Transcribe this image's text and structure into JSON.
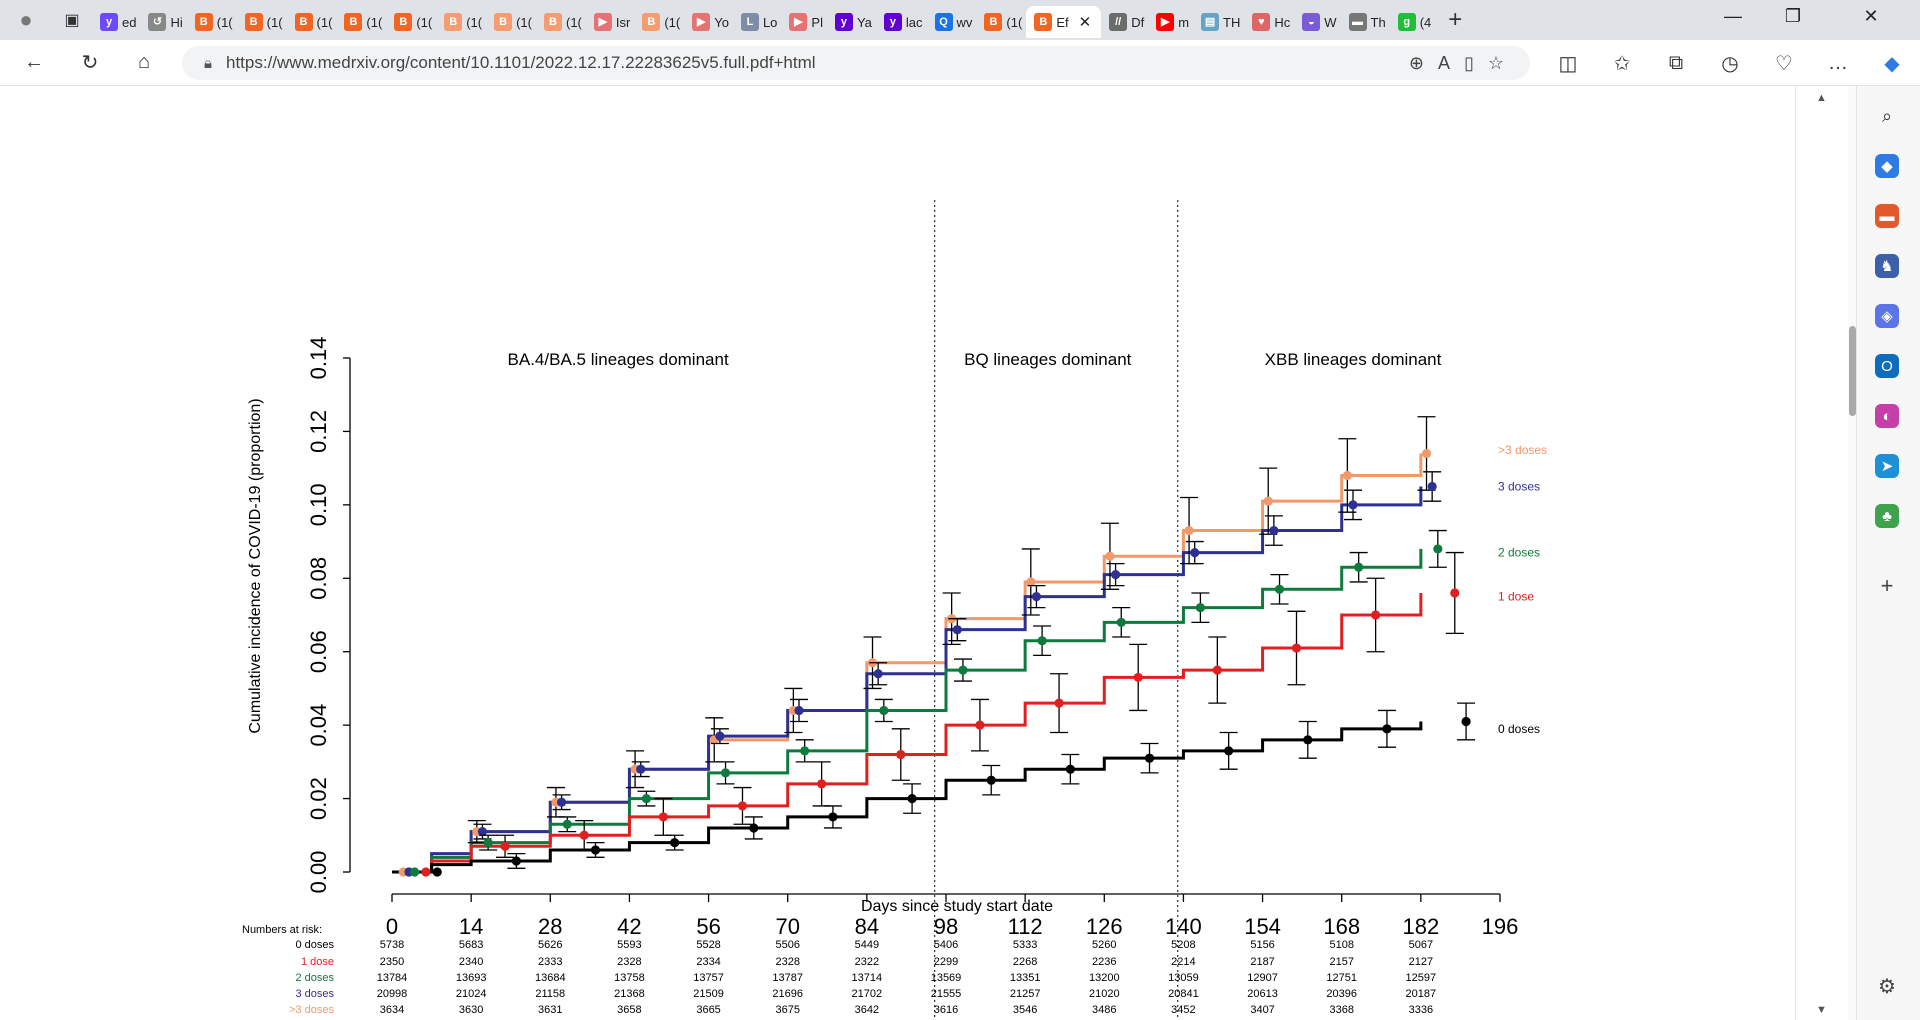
{
  "browser": {
    "tabs": [
      {
        "label": "ed",
        "color": "#6d4aff",
        "glyph": "y"
      },
      {
        "label": "Hi",
        "color": "#888888",
        "glyph": "↺"
      },
      {
        "label": "(1(",
        "color": "#f26522",
        "glyph": "B"
      },
      {
        "label": "(1(",
        "color": "#f26522",
        "glyph": "B"
      },
      {
        "label": "(1(",
        "color": "#f26522",
        "glyph": "B"
      },
      {
        "label": "(1(",
        "color": "#f26522",
        "glyph": "B"
      },
      {
        "label": "(1(",
        "color": "#f26522",
        "glyph": "B"
      },
      {
        "label": "(1(",
        "color": "#f59c71",
        "glyph": "B"
      },
      {
        "label": "(1(",
        "color": "#f59c71",
        "glyph": "B"
      },
      {
        "label": "(1(",
        "color": "#f59c71",
        "glyph": "B"
      },
      {
        "label": "Isr",
        "color": "#e57373",
        "glyph": "▶"
      },
      {
        "label": "(1(",
        "color": "#f59c71",
        "glyph": "B"
      },
      {
        "label": "Yo",
        "color": "#e57373",
        "glyph": "▶"
      },
      {
        "label": "Lo",
        "color": "#7e8ca8",
        "glyph": "L"
      },
      {
        "label": "Pl",
        "color": "#e57373",
        "glyph": "▶"
      },
      {
        "label": "Ya",
        "color": "#6001d2",
        "glyph": "y"
      },
      {
        "label": "lac",
        "color": "#6001d2",
        "glyph": "y"
      },
      {
        "label": "wv",
        "color": "#1a73e8",
        "glyph": "Q"
      },
      {
        "label": "(1(",
        "color": "#f26522",
        "glyph": "B"
      }
    ],
    "active_tab": {
      "label": "Ef",
      "close": "✕"
    },
    "tabs_after": [
      {
        "label": "Df",
        "color": "#6b6b6b",
        "glyph": "//"
      },
      {
        "label": "m",
        "color": "#ff0000",
        "glyph": "▶"
      },
      {
        "label": "TH",
        "color": "#66a3c4",
        "glyph": "▤"
      },
      {
        "label": "Hc",
        "color": "#e06666",
        "glyph": "♥"
      },
      {
        "label": "W",
        "color": "#7a5cd6",
        "glyph": "◒"
      },
      {
        "label": "Th",
        "color": "#777777",
        "glyph": "▬"
      },
      {
        "label": "(4",
        "color": "#1fbf3a",
        "glyph": "g"
      }
    ],
    "new_tab": "+",
    "url": "https://www.medrxiv.org/content/10.1101/2022.12.17.22283625v5.full.pdf+html",
    "window_controls": {
      "minimize": "—",
      "restore": "❐",
      "close": "✕"
    }
  },
  "chart_data": {
    "type": "line",
    "xlabel": "Days since study start date",
    "ylabel": "Cumulative incidence of COVID-19 (proportion)",
    "xlim": [
      0,
      196
    ],
    "ylim": [
      0,
      0.14
    ],
    "x_ticks": [
      0,
      14,
      28,
      42,
      56,
      70,
      84,
      98,
      112,
      126,
      140,
      154,
      168,
      182,
      196
    ],
    "y_ticks": [
      "0.00",
      "0.02",
      "0.04",
      "0.06",
      "0.08",
      "0.10",
      "0.12",
      "0.14"
    ],
    "periods": [
      {
        "label": "BA.4/BA.5 lineages dominant",
        "center": 40
      },
      {
        "label": "BQ lineages dominant",
        "center": 116
      },
      {
        "label": "XBB lineages dominant",
        "center": 170
      }
    ],
    "dividers": [
      96,
      139
    ],
    "series": [
      {
        "name": ">3 doses",
        "color": "#f0996a",
        "curve": [
          [
            0,
            0
          ],
          [
            7,
            0.004
          ],
          [
            14,
            0.011
          ],
          [
            28,
            0.019
          ],
          [
            42,
            0.028
          ],
          [
            56,
            0.036
          ],
          [
            70,
            0.044
          ],
          [
            84,
            0.057
          ],
          [
            98,
            0.069
          ],
          [
            112,
            0.079
          ],
          [
            126,
            0.086
          ],
          [
            140,
            0.093
          ],
          [
            154,
            0.101
          ],
          [
            168,
            0.108
          ],
          [
            182,
            0.114
          ]
        ],
        "points": [
          [
            2,
            0
          ],
          [
            15,
            0.011
          ],
          [
            29,
            0.019
          ],
          [
            43,
            0.028
          ],
          [
            57,
            0.036
          ],
          [
            71,
            0.044
          ],
          [
            85,
            0.057
          ],
          [
            99,
            0.069
          ],
          [
            113,
            0.079
          ],
          [
            127,
            0.086
          ],
          [
            141,
            0.093
          ],
          [
            155,
            0.101
          ],
          [
            169,
            0.108
          ],
          [
            183,
            0.114
          ]
        ],
        "err": [
          0,
          0.003,
          0.004,
          0.005,
          0.006,
          0.006,
          0.007,
          0.007,
          0.009,
          0.009,
          0.009,
          0.009,
          0.01,
          0.01
        ]
      },
      {
        "name": "3 doses",
        "color": "#2e3192",
        "curve": [
          [
            0,
            0
          ],
          [
            7,
            0.005
          ],
          [
            14,
            0.011
          ],
          [
            28,
            0.019
          ],
          [
            42,
            0.028
          ],
          [
            56,
            0.037
          ],
          [
            70,
            0.044
          ],
          [
            84,
            0.054
          ],
          [
            98,
            0.066
          ],
          [
            112,
            0.075
          ],
          [
            126,
            0.081
          ],
          [
            140,
            0.087
          ],
          [
            154,
            0.093
          ],
          [
            168,
            0.1
          ],
          [
            182,
            0.105
          ]
        ],
        "points": [
          [
            3,
            0
          ],
          [
            16,
            0.011
          ],
          [
            30,
            0.019
          ],
          [
            44,
            0.028
          ],
          [
            58,
            0.037
          ],
          [
            72,
            0.044
          ],
          [
            86,
            0.054
          ],
          [
            100,
            0.066
          ],
          [
            114,
            0.075
          ],
          [
            128,
            0.081
          ],
          [
            142,
            0.087
          ],
          [
            156,
            0.093
          ],
          [
            170,
            0.1
          ],
          [
            184,
            0.105
          ]
        ],
        "err": [
          0,
          0.002,
          0.002,
          0.002,
          0.002,
          0.003,
          0.003,
          0.003,
          0.003,
          0.003,
          0.003,
          0.004,
          0.004,
          0.004
        ]
      },
      {
        "name": "2 doses",
        "color": "#0e7a3e",
        "curve": [
          [
            0,
            0
          ],
          [
            7,
            0.004
          ],
          [
            14,
            0.008
          ],
          [
            28,
            0.013
          ],
          [
            42,
            0.02
          ],
          [
            56,
            0.027
          ],
          [
            70,
            0.033
          ],
          [
            84,
            0.044
          ],
          [
            98,
            0.055
          ],
          [
            112,
            0.063
          ],
          [
            126,
            0.068
          ],
          [
            140,
            0.072
          ],
          [
            154,
            0.077
          ],
          [
            168,
            0.083
          ],
          [
            182,
            0.088
          ]
        ],
        "points": [
          [
            4,
            0
          ],
          [
            17,
            0.008
          ],
          [
            31,
            0.013
          ],
          [
            45,
            0.02
          ],
          [
            59,
            0.027
          ],
          [
            73,
            0.033
          ],
          [
            87,
            0.044
          ],
          [
            101,
            0.055
          ],
          [
            115,
            0.063
          ],
          [
            129,
            0.068
          ],
          [
            143,
            0.072
          ],
          [
            157,
            0.077
          ],
          [
            171,
            0.083
          ],
          [
            185,
            0.088
          ]
        ],
        "err": [
          0,
          0.002,
          0.002,
          0.002,
          0.003,
          0.003,
          0.003,
          0.003,
          0.004,
          0.004,
          0.004,
          0.004,
          0.004,
          0.005
        ]
      },
      {
        "name": "1 dose",
        "color": "#e02020",
        "curve": [
          [
            0,
            0
          ],
          [
            7,
            0.003
          ],
          [
            14,
            0.007
          ],
          [
            28,
            0.01
          ],
          [
            42,
            0.015
          ],
          [
            56,
            0.018
          ],
          [
            70,
            0.024
          ],
          [
            84,
            0.032
          ],
          [
            98,
            0.04
          ],
          [
            112,
            0.046
          ],
          [
            126,
            0.053
          ],
          [
            140,
            0.055
          ],
          [
            154,
            0.061
          ],
          [
            168,
            0.07
          ],
          [
            182,
            0.076
          ]
        ],
        "points": [
          [
            6,
            0
          ],
          [
            20,
            0.007
          ],
          [
            34,
            0.01
          ],
          [
            48,
            0.015
          ],
          [
            62,
            0.018
          ],
          [
            76,
            0.024
          ],
          [
            90,
            0.032
          ],
          [
            104,
            0.04
          ],
          [
            118,
            0.046
          ],
          [
            132,
            0.053
          ],
          [
            146,
            0.055
          ],
          [
            160,
            0.061
          ],
          [
            174,
            0.07
          ],
          [
            188,
            0.076
          ]
        ],
        "err": [
          0,
          0.003,
          0.004,
          0.005,
          0.005,
          0.006,
          0.007,
          0.007,
          0.008,
          0.009,
          0.009,
          0.01,
          0.01,
          0.011
        ]
      },
      {
        "name": "0 doses",
        "color": "#000000",
        "curve": [
          [
            0,
            0
          ],
          [
            7,
            0.002
          ],
          [
            14,
            0.003
          ],
          [
            28,
            0.006
          ],
          [
            42,
            0.008
          ],
          [
            56,
            0.012
          ],
          [
            70,
            0.015
          ],
          [
            84,
            0.02
          ],
          [
            98,
            0.025
          ],
          [
            112,
            0.028
          ],
          [
            126,
            0.031
          ],
          [
            140,
            0.033
          ],
          [
            154,
            0.036
          ],
          [
            168,
            0.039
          ],
          [
            182,
            0.041
          ]
        ],
        "points": [
          [
            8,
            0
          ],
          [
            22,
            0.003
          ],
          [
            36,
            0.006
          ],
          [
            50,
            0.008
          ],
          [
            64,
            0.012
          ],
          [
            78,
            0.015
          ],
          [
            92,
            0.02
          ],
          [
            106,
            0.025
          ],
          [
            120,
            0.028
          ],
          [
            134,
            0.031
          ],
          [
            148,
            0.033
          ],
          [
            162,
            0.036
          ],
          [
            176,
            0.039
          ],
          [
            190,
            0.041
          ]
        ],
        "err": [
          0,
          0.002,
          0.002,
          0.002,
          0.003,
          0.003,
          0.004,
          0.004,
          0.004,
          0.004,
          0.005,
          0.005,
          0.005,
          0.005
        ]
      }
    ],
    "legend_labels": [
      {
        "name": ">3 doses",
        "y": 0.115
      },
      {
        "name": "3 doses",
        "y": 0.105
      },
      {
        "name": "2 doses",
        "y": 0.087
      },
      {
        "name": "1 dose",
        "y": 0.075
      },
      {
        "name": "0 doses",
        "y": 0.039
      }
    ],
    "risk_table": {
      "title": "Numbers at risk:",
      "times": [
        0,
        14,
        28,
        42,
        56,
        70,
        84,
        98,
        112,
        126,
        140,
        154,
        168,
        182
      ],
      "rows": [
        {
          "label": "0 doses",
          "color": "#000000",
          "values": [
            5738,
            5683,
            5626,
            5593,
            5528,
            5506,
            5449,
            5406,
            5333,
            5260,
            5208,
            5156,
            5108,
            5067
          ]
        },
        {
          "label": "1 dose",
          "color": "#e02020",
          "values": [
            2350,
            2340,
            2333,
            2328,
            2334,
            2328,
            2322,
            2299,
            2268,
            2236,
            2214,
            2187,
            2157,
            2127
          ]
        },
        {
          "label": "2 doses",
          "color": "#0e7a3e",
          "values": [
            13784,
            13693,
            13684,
            13758,
            13757,
            13787,
            13714,
            13569,
            13351,
            13200,
            13059,
            12907,
            12751,
            12597
          ]
        },
        {
          "label": "3 doses",
          "color": "#2e3192",
          "values": [
            20998,
            21024,
            21158,
            21368,
            21509,
            21696,
            21702,
            21555,
            21257,
            21020,
            20841,
            20613,
            20396,
            20187
          ]
        },
        {
          "label": ">3 doses",
          "color": "#f0996a",
          "values": [
            3634,
            3630,
            3631,
            3658,
            3665,
            3675,
            3642,
            3616,
            3546,
            3486,
            3452,
            3407,
            3368,
            3336
          ]
        }
      ]
    }
  }
}
